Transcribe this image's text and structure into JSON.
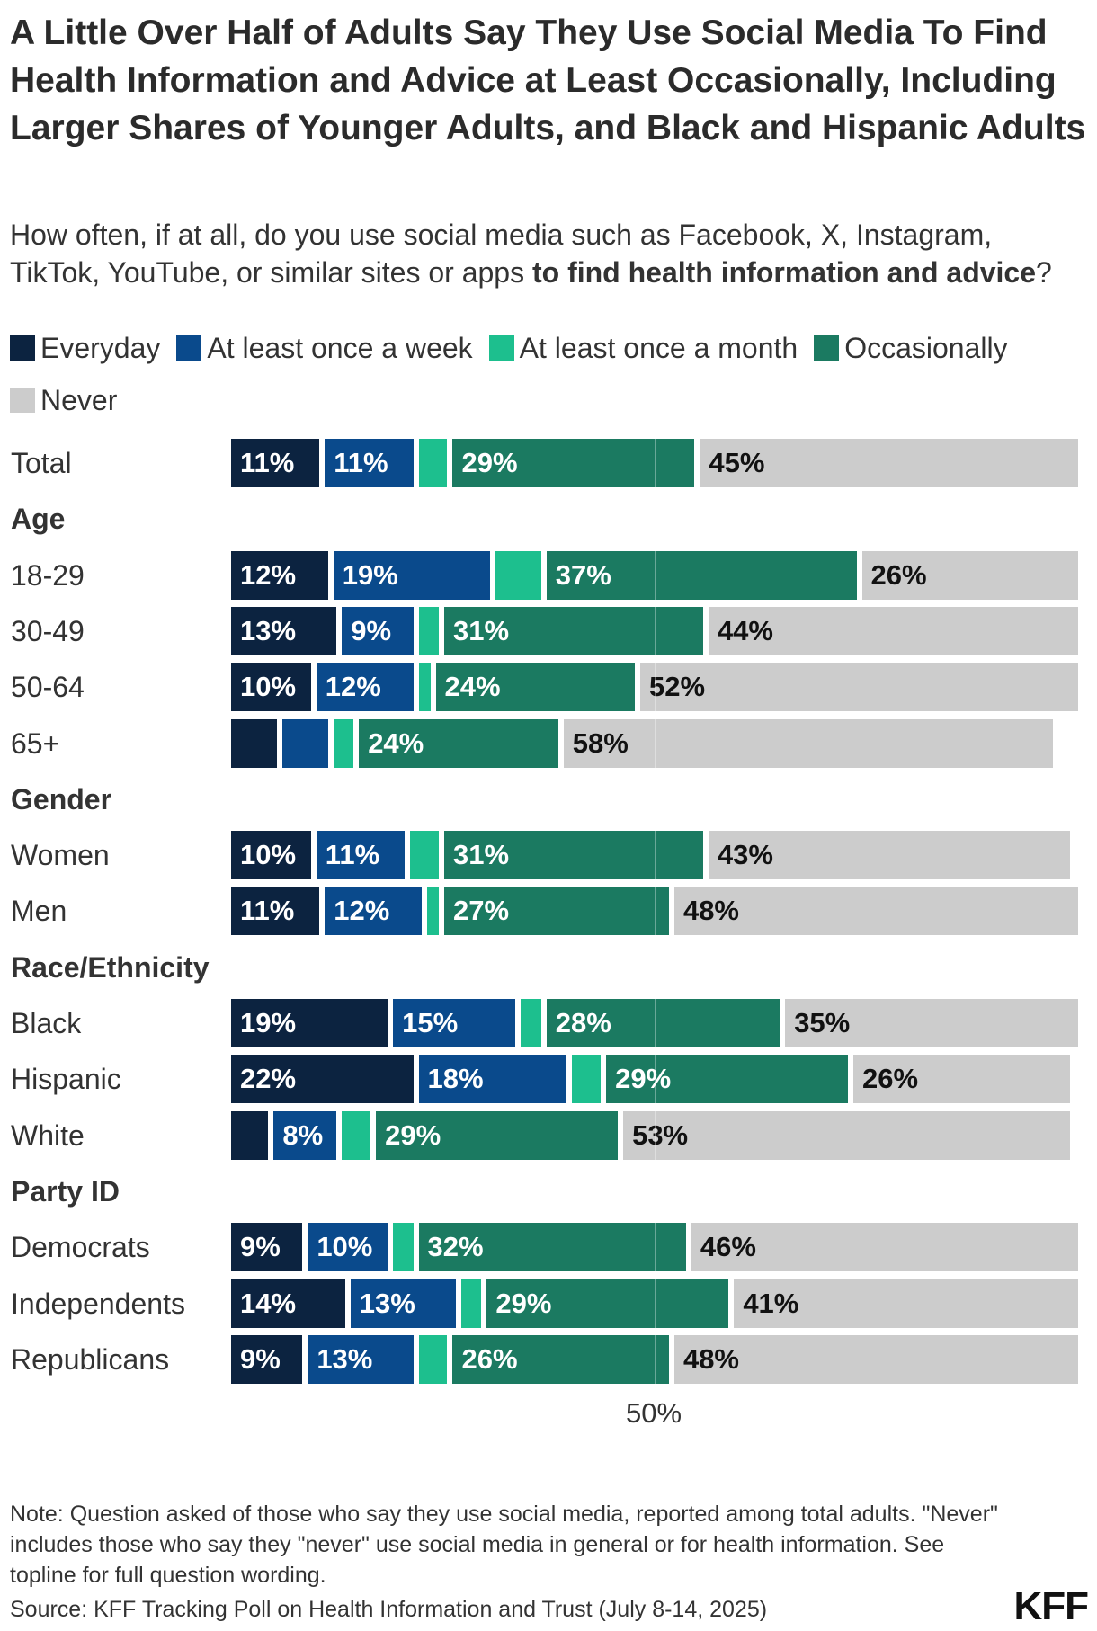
{
  "title": "A Little Over Half of Adults Say They Use Social Media To Find Health Information and Advice at Least Occasionally, Including Larger Shares of Younger Adults, and Black and Hispanic Adults",
  "subtitle_plain": "How often, if at all, do you use social media such as Facebook, X, Instagram, TikTok, YouTube, or similar sites or apps ",
  "subtitle_bold": "to find health information and advice",
  "subtitle_end": "?",
  "note": "Note: Question asked of those who say they use social media, reported among total adults. \"Never\" includes those who say they \"never\" use social media in general or for health information. See topline for full question wording.",
  "source": "Source: KFF Tracking Poll on Health Information and Trust (July 8-14, 2025)",
  "logo": "KFF",
  "chart_data": {
    "type": "bar",
    "orientation": "horizontal-stacked",
    "title": "",
    "xlabel": "",
    "ylabel": "",
    "xlim": [
      0,
      100
    ],
    "x_tick_labels": [
      "50%"
    ],
    "reference_line": 50,
    "legend_position": "top",
    "series": [
      {
        "name": "Everyday",
        "color": "#0c2340"
      },
      {
        "name": "At least once a week",
        "color": "#0a4a8c"
      },
      {
        "name": "At least once a month",
        "color": "#1dbf8e"
      },
      {
        "name": "Occasionally",
        "color": "#1b7a61"
      },
      {
        "name": "Never",
        "color": "#cccccc"
      }
    ],
    "rows": [
      {
        "type": "bar",
        "label": "Total",
        "values": [
          11,
          11,
          4,
          29,
          45
        ],
        "labels": [
          "11%",
          "11%",
          "",
          "29%",
          "45%"
        ]
      },
      {
        "type": "group",
        "label": "Age"
      },
      {
        "type": "bar",
        "label": "18-29",
        "values": [
          12,
          19,
          6,
          37,
          26
        ],
        "labels": [
          "12%",
          "19%",
          "",
          "37%",
          "26%"
        ]
      },
      {
        "type": "bar",
        "label": "30-49",
        "values": [
          13,
          9,
          3,
          31,
          44
        ],
        "labels": [
          "13%",
          "9%",
          "",
          "31%",
          "44%"
        ]
      },
      {
        "type": "bar",
        "label": "50-64",
        "values": [
          10,
          12,
          2,
          24,
          52
        ],
        "labels": [
          "10%",
          "12%",
          "",
          "24%",
          "52%"
        ]
      },
      {
        "type": "bar",
        "label": "65+",
        "values": [
          6,
          6,
          3,
          24,
          58
        ],
        "labels": [
          "",
          "",
          "",
          "24%",
          "58%"
        ]
      },
      {
        "type": "group",
        "label": "Gender"
      },
      {
        "type": "bar",
        "label": "Women",
        "values": [
          10,
          11,
          4,
          31,
          43
        ],
        "labels": [
          "10%",
          "11%",
          "",
          "31%",
          "43%"
        ]
      },
      {
        "type": "bar",
        "label": "Men",
        "values": [
          11,
          12,
          2,
          27,
          48
        ],
        "labels": [
          "11%",
          "12%",
          "",
          "27%",
          "48%"
        ]
      },
      {
        "type": "group",
        "label": "Race/Ethnicity"
      },
      {
        "type": "bar",
        "label": "Black",
        "values": [
          19,
          15,
          3,
          28,
          35
        ],
        "labels": [
          "19%",
          "15%",
          "",
          "28%",
          "35%"
        ]
      },
      {
        "type": "bar",
        "label": "Hispanic",
        "values": [
          22,
          18,
          4,
          29,
          26
        ],
        "labels": [
          "22%",
          "18%",
          "",
          "29%",
          "26%"
        ]
      },
      {
        "type": "bar",
        "label": "White",
        "values": [
          5,
          8,
          4,
          29,
          53
        ],
        "labels": [
          "",
          "8%",
          "",
          "29%",
          "53%"
        ]
      },
      {
        "type": "group",
        "label": "Party ID"
      },
      {
        "type": "bar",
        "label": "Democrats",
        "values": [
          9,
          10,
          3,
          32,
          46
        ],
        "labels": [
          "9%",
          "10%",
          "",
          "32%",
          "46%"
        ]
      },
      {
        "type": "bar",
        "label": "Independents",
        "values": [
          14,
          13,
          3,
          29,
          41
        ],
        "labels": [
          "14%",
          "13%",
          "",
          "29%",
          "41%"
        ]
      },
      {
        "type": "bar",
        "label": "Republicans",
        "values": [
          9,
          13,
          4,
          26,
          48
        ],
        "labels": [
          "9%",
          "13%",
          "",
          "26%",
          "48%"
        ]
      }
    ]
  }
}
